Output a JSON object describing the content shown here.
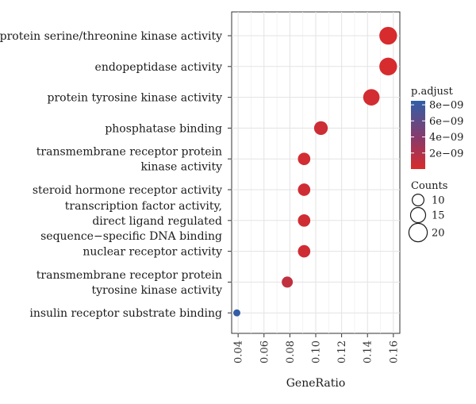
{
  "chart_data": {
    "type": "scatter",
    "title": "",
    "xlabel": "GeneRatio",
    "ylabel": "",
    "xlim": [
      0.035,
      0.165
    ],
    "x_ticks": [
      0.04,
      0.06,
      0.08,
      0.1,
      0.12,
      0.14,
      0.16
    ],
    "x_tick_labels": [
      "0.04",
      "0.06",
      "0.08",
      "0.10",
      "0.12",
      "0.14",
      "0.16"
    ],
    "grid": true,
    "points": [
      {
        "label_lines": [
          "protein serine/threonine kinase activity"
        ],
        "gene_ratio": 0.156,
        "count": 19,
        "p_adjust": 1e-10
      },
      {
        "label_lines": [
          "endopeptidase activity"
        ],
        "gene_ratio": 0.156,
        "count": 19,
        "p_adjust": 1.5e-10
      },
      {
        "label_lines": [
          "protein tyrosine kinase activity"
        ],
        "gene_ratio": 0.143,
        "count": 17,
        "p_adjust": 4e-10
      },
      {
        "label_lines": [
          "phosphatase binding"
        ],
        "gene_ratio": 0.104,
        "count": 13,
        "p_adjust": 6e-10
      },
      {
        "label_lines": [
          "transmembrane receptor protein",
          "kinase activity"
        ],
        "gene_ratio": 0.091,
        "count": 11,
        "p_adjust": 4e-10
      },
      {
        "label_lines": [
          "steroid hormone receptor activity"
        ],
        "gene_ratio": 0.091,
        "count": 11,
        "p_adjust": 5e-10
      },
      {
        "label_lines": [
          "transcription factor activity,",
          "direct ligand regulated",
          "sequence−specific DNA binding"
        ],
        "gene_ratio": 0.091,
        "count": 11,
        "p_adjust": 5e-10
      },
      {
        "label_lines": [
          "nuclear receptor activity"
        ],
        "gene_ratio": 0.091,
        "count": 11,
        "p_adjust": 5e-10
      },
      {
        "label_lines": [
          "transmembrane receptor protein",
          "tyrosine kinase activity"
        ],
        "gene_ratio": 0.078,
        "count": 9,
        "p_adjust": 1.2e-09
      },
      {
        "label_lines": [
          "insulin receptor substrate binding"
        ],
        "gene_ratio": 0.039,
        "count": 3,
        "p_adjust": 8.3e-09
      }
    ],
    "color_legend": {
      "title": "p.adjust",
      "low_color": "#d92b2b",
      "high_color": "#2f5fa8",
      "range": [
        0,
        8.5e-09
      ],
      "ticks": [
        8e-09,
        6e-09,
        4e-09,
        2e-09
      ],
      "tick_labels": [
        "8e−09",
        "6e−09",
        "4e−09",
        "2e−09"
      ]
    },
    "size_legend": {
      "title": "Counts",
      "values": [
        10,
        15,
        20
      ],
      "labels": [
        "10",
        "15",
        "20"
      ]
    }
  }
}
